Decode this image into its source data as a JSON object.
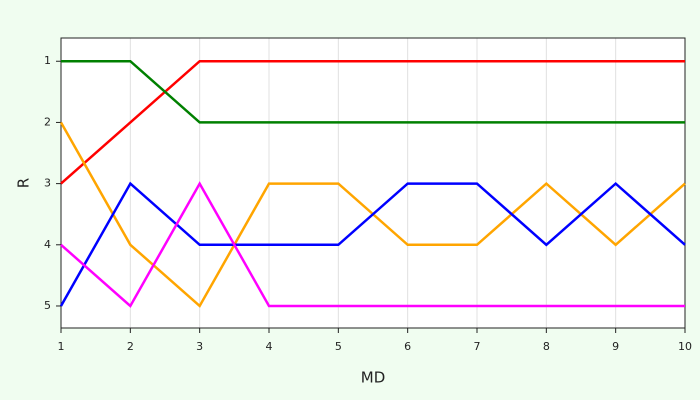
{
  "chart_data": {
    "type": "line",
    "x_label": "MD",
    "y_label": "R",
    "x": [
      1,
      2,
      3,
      4,
      5,
      6,
      7,
      8,
      9,
      10
    ],
    "series": [
      {
        "color": "#ff0000",
        "values": [
          3,
          2,
          1,
          1,
          1,
          1,
          1,
          1,
          1,
          1
        ]
      },
      {
        "color": "#008000",
        "values": [
          1,
          1,
          2,
          2,
          2,
          2,
          2,
          2,
          2,
          2
        ]
      },
      {
        "color": "#ffa500",
        "values": [
          2,
          4,
          5,
          3,
          3,
          4,
          4,
          3,
          4,
          3
        ]
      },
      {
        "color": "#0000ff",
        "values": [
          5,
          3,
          4,
          4,
          4,
          3,
          3,
          4,
          3,
          4
        ]
      },
      {
        "color": "#ff00ff",
        "values": [
          4,
          5,
          3,
          5,
          5,
          5,
          5,
          5,
          5,
          5
        ]
      }
    ],
    "xlim": [
      1,
      10
    ],
    "xticks": [
      1,
      2,
      3,
      4,
      5,
      6,
      7,
      8,
      9,
      10
    ],
    "ylim": [
      5.36,
      0.62
    ],
    "yticks": [
      1,
      2,
      3,
      4,
      5
    ],
    "grid": true
  }
}
